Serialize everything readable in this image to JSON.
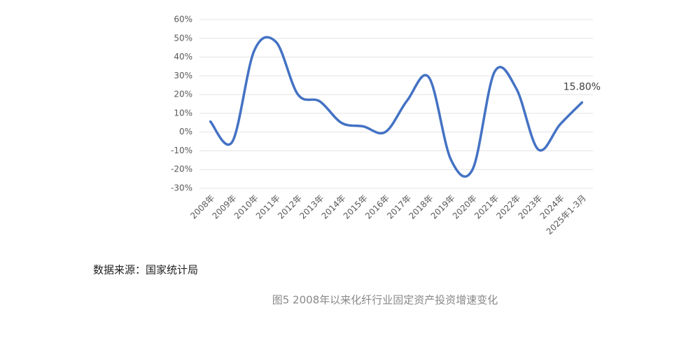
{
  "chart_data": {
    "type": "line",
    "categories": [
      "2008年",
      "2009年",
      "2010年",
      "2011年",
      "2012年",
      "2013年",
      "2014年",
      "2015年",
      "2016年",
      "2017年",
      "2018年",
      "2019年",
      "2020年",
      "2021年",
      "2022年",
      "2023年",
      "2024年",
      "2025年1-3月"
    ],
    "series": [
      {
        "name": "化纤行业固定资产投资增速",
        "color": "#4472c4",
        "values": [
          5.6,
          -5.2,
          43.3,
          48.1,
          20.1,
          16.4,
          4.9,
          3.0,
          0,
          16.8,
          29.1,
          -14.6,
          -19.8,
          32.1,
          23.1,
          -9.3,
          4.1,
          15.8
        ],
        "value_labels": [
          null,
          null,
          null,
          null,
          null,
          null,
          null,
          null,
          null,
          null,
          null,
          null,
          null,
          null,
          null,
          null,
          null,
          "15.80%"
        ]
      }
    ],
    "ylim": [
      -30,
      60
    ],
    "yticks": [
      {
        "value": -30,
        "label": "-30%"
      },
      {
        "value": -20,
        "label": "-20%"
      },
      {
        "value": -10,
        "label": "-10%"
      },
      {
        "value": 0,
        "label": "0%"
      },
      {
        "value": 10,
        "label": "10%"
      },
      {
        "value": 20,
        "label": "20%"
      },
      {
        "value": 30,
        "label": "30%"
      },
      {
        "value": 40,
        "label": "40%"
      },
      {
        "value": 50,
        "label": "50%"
      },
      {
        "value": 60,
        "label": "60%"
      }
    ],
    "grid": true,
    "source": "数据来源：国家统计局",
    "caption": "图5  2008年以来化纤行业固定资产投资增速变化"
  }
}
